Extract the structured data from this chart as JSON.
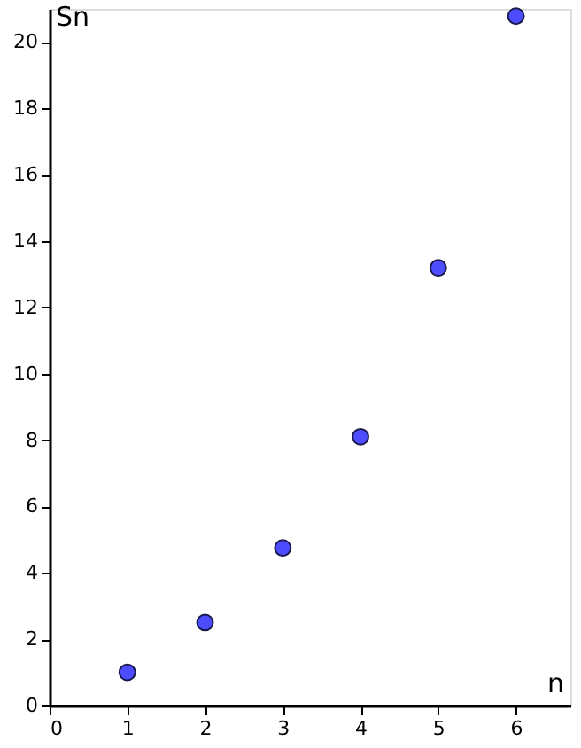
{
  "chart_data": {
    "type": "scatter",
    "xlabel": "n",
    "ylabel": "Sn",
    "x": [
      1,
      2,
      3,
      4,
      5,
      6
    ],
    "series": [
      {
        "color": "#4d4dff",
        "values": [
          1,
          2.5,
          4.75,
          8.1,
          13.19,
          20.78
        ]
      }
    ],
    "xlim": [
      0,
      6.7
    ],
    "xticks": [
      0,
      1,
      2,
      3,
      4,
      5,
      6
    ],
    "ylim": [
      0,
      21
    ],
    "yticks": [
      0,
      2,
      4,
      6,
      8,
      10,
      12,
      14,
      16,
      18,
      20
    ],
    "marker": "circle",
    "grid": false
  }
}
